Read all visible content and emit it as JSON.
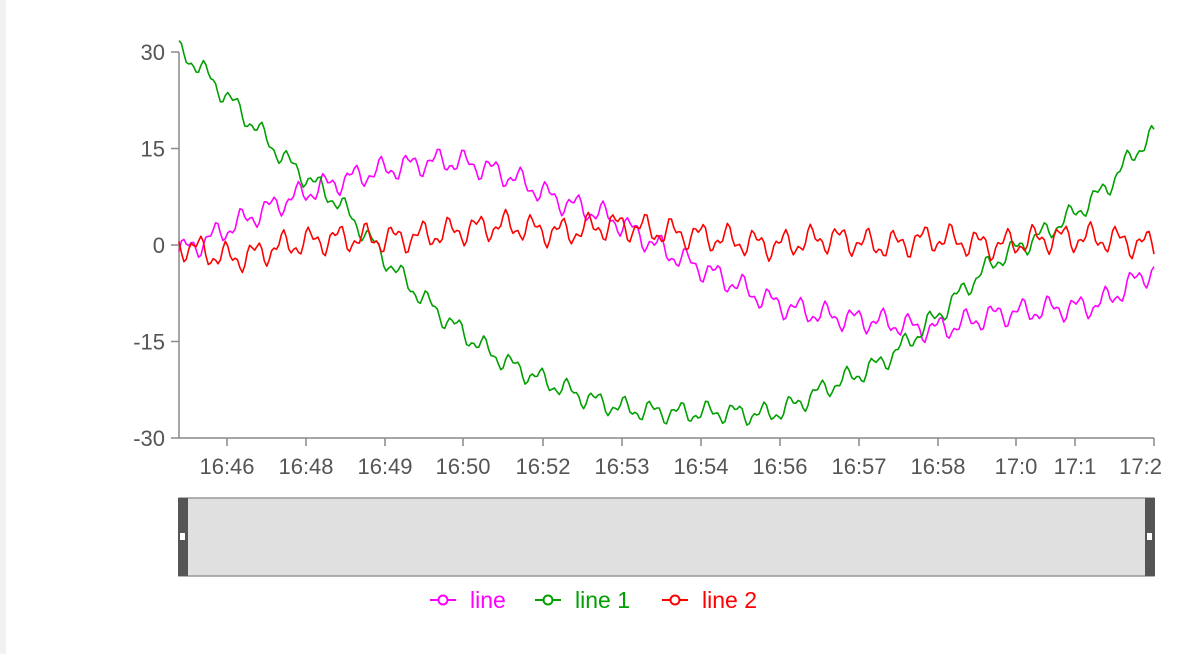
{
  "chart_data": {
    "type": "line",
    "title": "",
    "xlabel": "",
    "ylabel": "",
    "ylim": [
      -30,
      30
    ],
    "x_ticks": [
      "16:46",
      "16:48",
      "16:49",
      "16:50",
      "16:52",
      "16:53",
      "16:54",
      "16:56",
      "16:57",
      "16:58",
      "17:0",
      "17:1",
      "17:2"
    ],
    "y_ticks": [
      "30",
      "15",
      "0",
      "-15",
      "-30"
    ],
    "y_tick_values": [
      30,
      15,
      0,
      -15,
      -30
    ],
    "x": [
      "16:45",
      "16:46",
      "16:47",
      "16:48",
      "16:49",
      "16:50",
      "16:51",
      "16:52",
      "16:53",
      "16:54",
      "16:55",
      "16:56",
      "16:57",
      "16:58",
      "16:59",
      "17:00",
      "17:01",
      "17:02",
      "17:03"
    ],
    "series": [
      {
        "name": "line",
        "color": "#ff00ff",
        "values": [
          -1,
          3,
          7,
          10,
          12,
          13,
          11,
          7,
          4,
          -1,
          -5,
          -9,
          -11,
          -12,
          -13,
          -11,
          -10,
          -9,
          -4
        ]
      },
      {
        "name": "line 1",
        "color": "#00a000",
        "values": [
          30,
          22,
          13,
          6,
          -4,
          -12,
          -18,
          -22,
          -25,
          -26,
          -26,
          -26,
          -22,
          -18,
          -11,
          -3,
          2,
          8,
          17
        ]
      },
      {
        "name": "line 2",
        "color": "#ff0000",
        "values": [
          0,
          -2,
          0,
          1,
          1,
          2,
          3,
          2,
          3,
          2,
          1,
          0,
          1,
          0,
          1,
          0,
          1,
          1,
          0
        ]
      }
    ],
    "grid": false,
    "legend_position": "bottom",
    "legend": [
      "line",
      "line 1",
      "line 2"
    ]
  },
  "slider": {
    "fill_color": "#e0e0e0",
    "handle_color": "#555555"
  }
}
